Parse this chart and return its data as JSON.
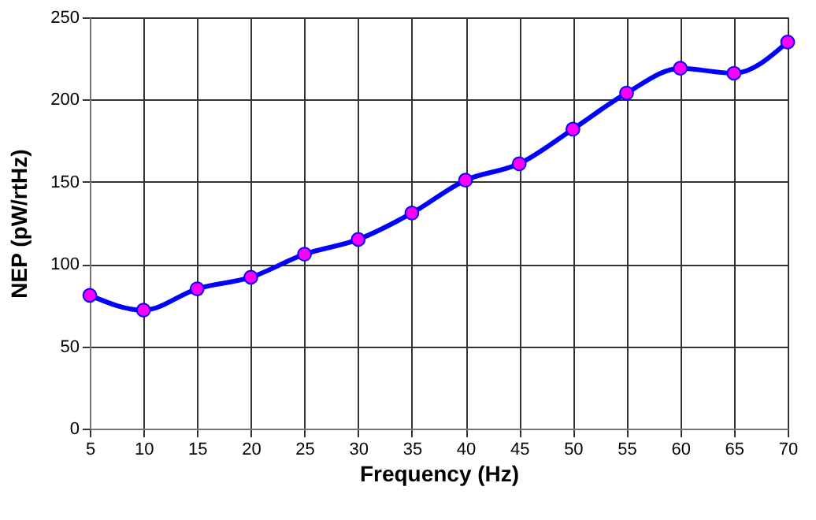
{
  "chart_data": {
    "type": "line",
    "xlabel": "Frequency (Hz)",
    "ylabel": "NEP (pW/rtHz)",
    "x": [
      5,
      10,
      15,
      20,
      25,
      30,
      35,
      40,
      45,
      50,
      55,
      60,
      65,
      70
    ],
    "series": [
      {
        "color": "#0000ff",
        "values": [
          81,
          72,
          85,
          92,
          106,
          115,
          131,
          151,
          161,
          182,
          204,
          219,
          216,
          235
        ]
      }
    ],
    "xlim": [
      5,
      70
    ],
    "xticks": [
      5,
      10,
      15,
      20,
      25,
      30,
      35,
      40,
      45,
      50,
      55,
      60,
      65,
      70
    ],
    "ylim": [
      0,
      250
    ],
    "yticks": [
      0,
      50,
      100,
      150,
      200,
      250
    ],
    "grid": true,
    "marker": "circle",
    "line_style": "solid"
  }
}
